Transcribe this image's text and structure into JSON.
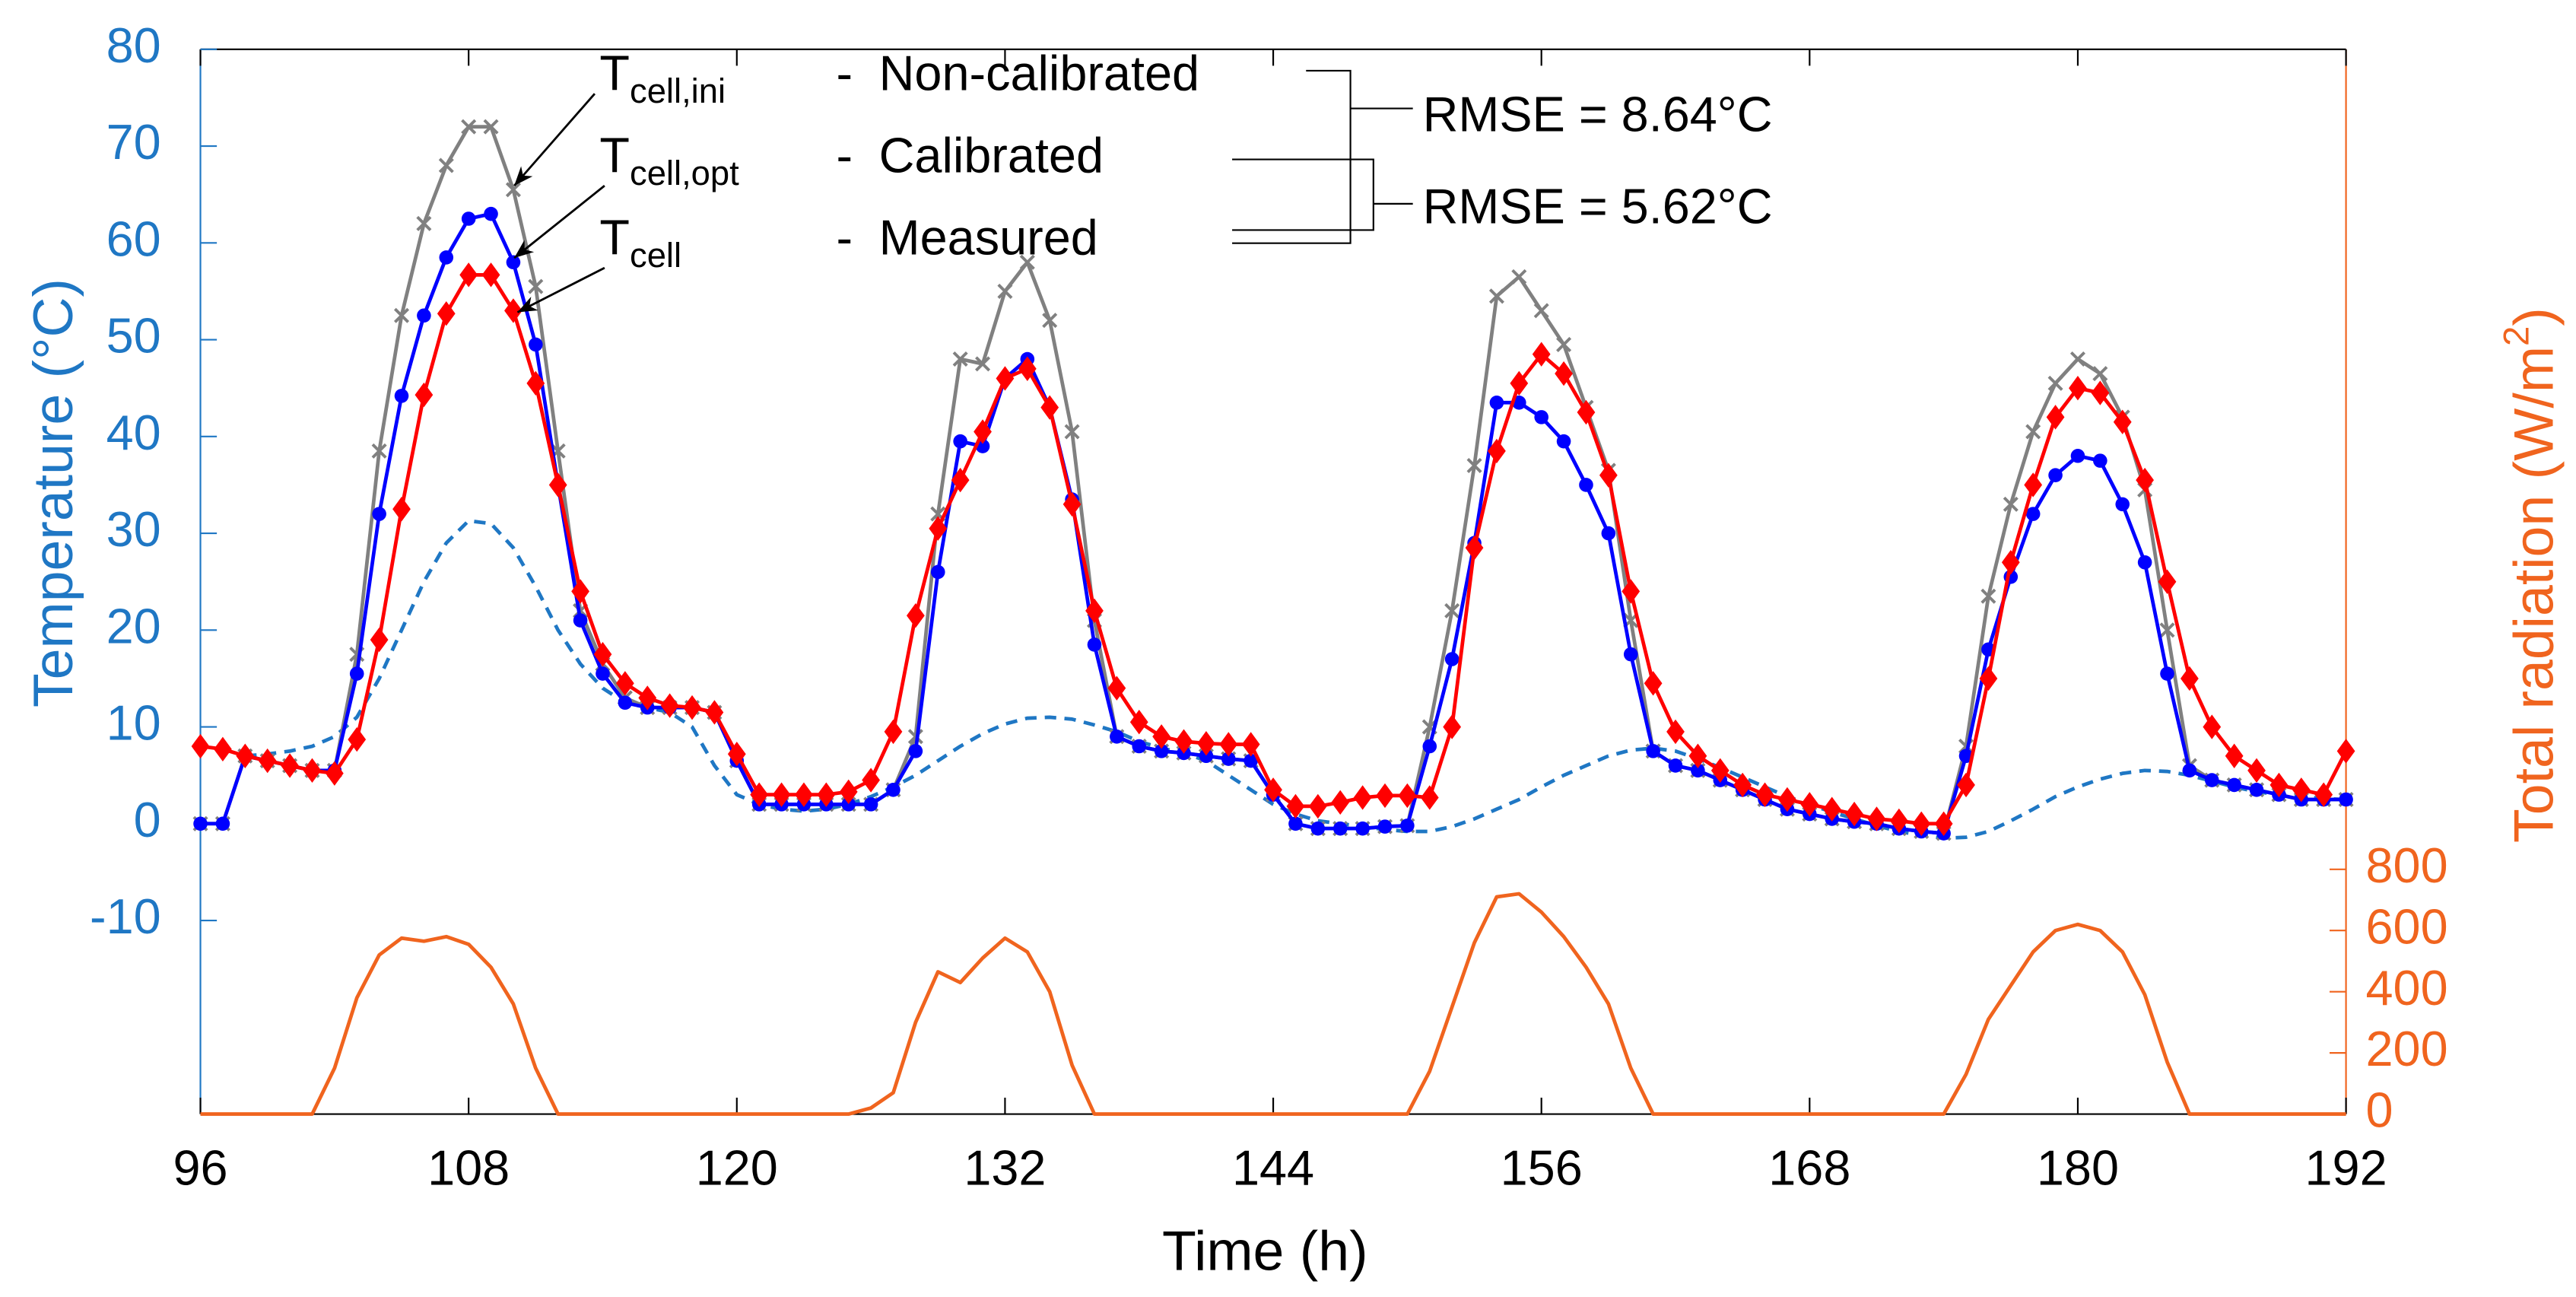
{
  "chart_data": {
    "type": "line",
    "xlabel": "Time (h)",
    "ylabel": "Temperature (°C)",
    "y2label": "Total radiation (W/m",
    "y2label_superscript": "2",
    "y2label_end": ")",
    "x": [
      96,
      97,
      98,
      99,
      100,
      101,
      102,
      103,
      104,
      105,
      106,
      107,
      108,
      109,
      110,
      111,
      112,
      113,
      114,
      115,
      116,
      117,
      118,
      119,
      120,
      121,
      122,
      123,
      124,
      125,
      126,
      127,
      128,
      129,
      130,
      131,
      132,
      133,
      134,
      135,
      136,
      137,
      138,
      139,
      140,
      141,
      142,
      143,
      144,
      145,
      146,
      147,
      148,
      149,
      150,
      151,
      152,
      153,
      154,
      155,
      156,
      157,
      158,
      159,
      160,
      161,
      162,
      163,
      164,
      165,
      166,
      167,
      168,
      169,
      170,
      171,
      172,
      173,
      174,
      175,
      176,
      177,
      178,
      179,
      180,
      181,
      182,
      183,
      184,
      185,
      186,
      187,
      188,
      189,
      190,
      191,
      192
    ],
    "xlim": [
      96,
      192
    ],
    "xticks": [
      96,
      108,
      120,
      132,
      144,
      156,
      168,
      180,
      192
    ],
    "ylim": [
      -30,
      80
    ],
    "yticks": [
      -10,
      0,
      10,
      20,
      30,
      40,
      50,
      60,
      70,
      80
    ],
    "ycolor": "#1f77c4",
    "y2lim": [
      0,
      3480
    ],
    "y2ticks": [
      0,
      200,
      400,
      600,
      800
    ],
    "y2color": "#f0641e",
    "series": [
      {
        "name": "Non-calibrated",
        "symbol": "T",
        "subscript": "cell,ini",
        "separator": "-",
        "color": "#808080",
        "marker": "x",
        "values": [
          0,
          0,
          7,
          6.5,
          6,
          5.5,
          5.5,
          17.5,
          38.5,
          52.5,
          62,
          68,
          72,
          72,
          65.5,
          55.5,
          38.5,
          22,
          16.5,
          13,
          12,
          12,
          12,
          11.5,
          6.5,
          2,
          2,
          2,
          2,
          2,
          2,
          3.5,
          9,
          32,
          48,
          47.5,
          55,
          58,
          52,
          40.5,
          21,
          9,
          8,
          7.5,
          7.3,
          7,
          6.7,
          6.5,
          3,
          0,
          -0.5,
          -0.5,
          -0.5,
          -0.3,
          -0.2,
          10,
          22,
          37,
          54.5,
          56.5,
          53,
          49.5,
          43,
          36.5,
          21,
          7.5,
          6,
          5.5,
          4.5,
          3.5,
          2.5,
          1.5,
          1,
          0.5,
          0.2,
          0,
          -0.5,
          -0.8,
          -1,
          8,
          23.5,
          33,
          40.5,
          45.5,
          48,
          46.5,
          42,
          34.5,
          20,
          6,
          4.5,
          4,
          3.5,
          3,
          2.5,
          2.5,
          2.5
        ]
      },
      {
        "name": "Calibrated",
        "symbol": "T",
        "subscript": "cell,opt",
        "separator": "-",
        "color": "#0000ff",
        "marker": "o",
        "values": [
          0,
          0,
          7,
          6.5,
          6,
          5.5,
          5.5,
          15.5,
          32,
          44.2,
          52.5,
          58.5,
          62.5,
          63,
          58,
          49.5,
          35,
          21,
          15.5,
          12.5,
          12,
          12,
          12,
          11.5,
          6.5,
          2,
          2,
          2,
          2,
          2,
          2,
          3.5,
          7.5,
          26,
          39.5,
          39,
          46,
          48,
          43,
          33.5,
          18.5,
          9,
          8,
          7.5,
          7.3,
          7,
          6.7,
          6.5,
          3,
          0,
          -0.5,
          -0.5,
          -0.5,
          -0.3,
          -0.2,
          8,
          17,
          29,
          43.5,
          43.5,
          42,
          39.5,
          35,
          30,
          17.5,
          7.5,
          6,
          5.5,
          4.5,
          3.5,
          2.5,
          1.5,
          1,
          0.5,
          0.2,
          0,
          -0.5,
          -0.8,
          -1,
          7,
          18,
          25.5,
          32,
          36,
          38,
          37.5,
          33,
          27,
          15.5,
          5.5,
          4.5,
          4,
          3.5,
          3,
          2.5,
          2.5,
          2.5
        ]
      },
      {
        "name": "Measured",
        "symbol": "T",
        "subscript": "cell",
        "separator": "-",
        "color": "#ff0000",
        "marker": "d",
        "values": [
          8,
          7.7,
          7,
          6.5,
          6,
          5.5,
          5.2,
          8.7,
          19,
          32.5,
          44.3,
          52.7,
          56.7,
          56.7,
          53,
          45.5,
          35,
          24,
          17.5,
          14.5,
          13,
          12.2,
          12,
          11.5,
          7.2,
          3,
          3,
          3,
          3,
          3.3,
          4.5,
          9.5,
          21.5,
          30.5,
          35.5,
          40.5,
          46,
          47,
          43,
          33,
          22,
          14,
          10.5,
          9,
          8.5,
          8.3,
          8.2,
          8.2,
          3.5,
          1.8,
          1.8,
          2.2,
          2.7,
          2.9,
          2.9,
          2.7,
          10,
          28.5,
          38.5,
          45.5,
          48.5,
          46.5,
          42.5,
          36,
          24,
          14.5,
          9.5,
          7,
          5.5,
          4,
          3,
          2.5,
          2,
          1.5,
          1,
          0.5,
          0.3,
          0,
          0,
          4,
          15,
          27,
          35,
          42,
          45,
          44.5,
          41.5,
          35.5,
          25,
          15,
          10,
          7,
          5.5,
          4,
          3.5,
          3,
          7.5
        ]
      },
      {
        "color": "#1f77c4",
        "linestyle": "dashed",
        "values": [
          null,
          null,
          7,
          7.2,
          7.5,
          8,
          9,
          11,
          15,
          20,
          25,
          29,
          31.3,
          31,
          28.5,
          24.5,
          20,
          16.5,
          14,
          12.5,
          12,
          11.5,
          10,
          6,
          3,
          2,
          1.5,
          1.3,
          1.5,
          2,
          2.8,
          3.8,
          5,
          6.5,
          8,
          9.3,
          10.3,
          10.9,
          11,
          10.8,
          10.2,
          9.5,
          8.5,
          7.8,
          7.3,
          6.5,
          5,
          3.5,
          2,
          1,
          0.3,
          0,
          -0.3,
          -0.6,
          -0.8,
          -0.8,
          -0.3,
          0.5,
          1.5,
          2.5,
          3.8,
          5,
          6,
          7,
          7.6,
          7.8,
          7.5,
          6.7,
          5.8,
          4.8,
          3.8,
          2.8,
          2,
          1.2,
          0.5,
          -0.2,
          -0.8,
          -1.2,
          -1.5,
          -1.4,
          -0.8,
          0.3,
          1.5,
          2.8,
          3.8,
          4.6,
          5.2,
          5.5,
          5.4,
          5,
          4.4,
          3.8,
          3.3,
          3,
          2.8,
          2.6,
          2.5
        ]
      },
      {
        "color": "#f0641e",
        "axis": "y2",
        "values": [
          0,
          0,
          0,
          0,
          0,
          0,
          150,
          380,
          520,
          575,
          565,
          580,
          555,
          480,
          360,
          150,
          0,
          0,
          0,
          0,
          0,
          0,
          0,
          0,
          0,
          0,
          0,
          0,
          0,
          0,
          20,
          70,
          300,
          465,
          430,
          510,
          575,
          530,
          400,
          160,
          0,
          0,
          0,
          0,
          0,
          0,
          0,
          0,
          0,
          0,
          0,
          0,
          0,
          0,
          0,
          140,
          350,
          560,
          710,
          720,
          660,
          580,
          480,
          360,
          150,
          0,
          0,
          0,
          0,
          0,
          0,
          0,
          0,
          0,
          0,
          0,
          0,
          0,
          0,
          130,
          310,
          420,
          530,
          600,
          620,
          600,
          530,
          390,
          170,
          0,
          0,
          0,
          0,
          0,
          0,
          0,
          0
        ]
      }
    ],
    "annotations": [
      "RMSE = 8.64°C",
      "RMSE = 5.62°C"
    ]
  }
}
